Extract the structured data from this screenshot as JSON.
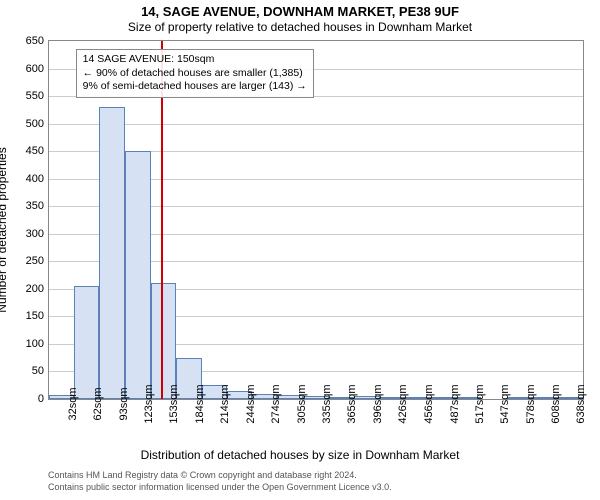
{
  "title_line1": "14, SAGE AVENUE, DOWNHAM MARKET, PE38 9UF",
  "title_line2": "Size of property relative to detached houses in Downham Market",
  "y_axis_label": "Number of detached properties",
  "x_axis_label": "Distribution of detached houses by size in Downham Market",
  "footer_line1": "Contains HM Land Registry data © Crown copyright and database right 2024.",
  "footer_line2": "Contains public sector information licensed under the Open Government Licence v3.0.",
  "annotation": {
    "line1": "14 SAGE AVENUE: 150sqm",
    "line2": "← 90% of detached houses are smaller (1,385)",
    "line3": "9% of semi-detached houses are larger (143) →"
  },
  "chart": {
    "type": "histogram",
    "background_color": "#ffffff",
    "border_color": "#888888",
    "grid_color": "#cccccc",
    "bar_fill": "#d6e2f3",
    "bar_stroke": "#5a82b8",
    "marker_color": "#cc0000",
    "marker_x_value": 150,
    "x_min": 17,
    "x_max": 653,
    "ylim": [
      0,
      650
    ],
    "ytick_step": 50,
    "title_fontsize": 13,
    "subtitle_fontsize": 12,
    "axis_label_fontsize": 12,
    "tick_fontsize": 11,
    "annotation_fontsize": 10.5,
    "footer_fontsize": 9,
    "x_ticks": [
      32,
      62,
      93,
      123,
      153,
      184,
      214,
      244,
      274,
      305,
      335,
      365,
      396,
      426,
      456,
      487,
      517,
      547,
      578,
      608,
      638
    ],
    "x_tick_suffix": "sqm",
    "bars": [
      {
        "x0": 17,
        "x1": 47,
        "value": 8
      },
      {
        "x0": 47,
        "x1": 77,
        "value": 205
      },
      {
        "x0": 77,
        "x1": 108,
        "value": 530
      },
      {
        "x0": 108,
        "x1": 138,
        "value": 450
      },
      {
        "x0": 138,
        "x1": 168,
        "value": 210
      },
      {
        "x0": 168,
        "x1": 199,
        "value": 75
      },
      {
        "x0": 199,
        "x1": 229,
        "value": 25
      },
      {
        "x0": 229,
        "x1": 259,
        "value": 15
      },
      {
        "x0": 259,
        "x1": 289,
        "value": 10
      },
      {
        "x0": 289,
        "x1": 320,
        "value": 8
      },
      {
        "x0": 320,
        "x1": 350,
        "value": 6
      },
      {
        "x0": 350,
        "x1": 380,
        "value": 2
      },
      {
        "x0": 380,
        "x1": 411,
        "value": 6
      },
      {
        "x0": 411,
        "x1": 441,
        "value": 2
      },
      {
        "x0": 441,
        "x1": 471,
        "value": 4
      },
      {
        "x0": 471,
        "x1": 502,
        "value": 2
      },
      {
        "x0": 502,
        "x1": 532,
        "value": 3
      },
      {
        "x0": 532,
        "x1": 562,
        "value": 0
      },
      {
        "x0": 562,
        "x1": 593,
        "value": 2
      },
      {
        "x0": 593,
        "x1": 623,
        "value": 2
      },
      {
        "x0": 623,
        "x1": 653,
        "value": 2
      }
    ]
  }
}
